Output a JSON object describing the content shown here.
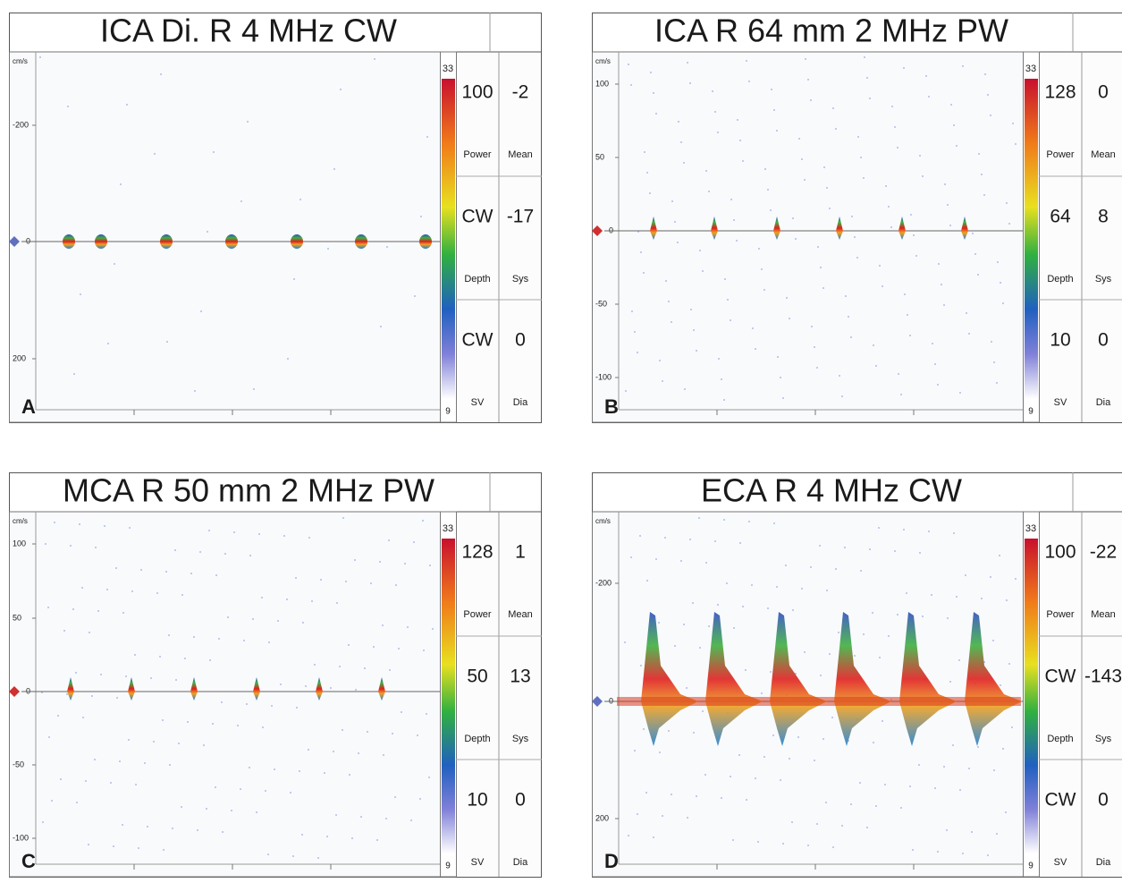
{
  "panels": [
    {
      "letter": "A",
      "title": "ICA Di. R 4 MHz CW",
      "y_unit": "cm/s",
      "y_ticks": [
        "-200",
        "0",
        "200"
      ],
      "scale_top": "33",
      "scale_bottom": "9",
      "readouts": [
        [
          "100",
          "-2"
        ],
        [
          "Power",
          "Mean"
        ],
        [
          "CW",
          "-17"
        ],
        [
          "Depth",
          "Sys"
        ],
        [
          "CW",
          "0"
        ],
        [
          "SV",
          "Dia"
        ]
      ]
    },
    {
      "letter": "B",
      "title": "ICA R 64 mm 2 MHz PW",
      "y_unit": "cm/s",
      "y_ticks": [
        "100",
        "50",
        "0",
        "-50",
        "-100"
      ],
      "scale_top": "33",
      "scale_bottom": "9",
      "readouts": [
        [
          "128",
          "0"
        ],
        [
          "Power",
          "Mean"
        ],
        [
          "64",
          "8"
        ],
        [
          "Depth",
          "Sys"
        ],
        [
          "10",
          "0"
        ],
        [
          "SV",
          "Dia"
        ]
      ]
    },
    {
      "letter": "C",
      "title": "MCA R 50 mm 2 MHz PW",
      "y_unit": "cm/s",
      "y_ticks": [
        "100",
        "50",
        "0",
        "-50",
        "-100"
      ],
      "scale_top": "33",
      "scale_bottom": "9",
      "readouts": [
        [
          "128",
          "1"
        ],
        [
          "Power",
          "Mean"
        ],
        [
          "50",
          "13"
        ],
        [
          "Depth",
          "Sys"
        ],
        [
          "10",
          "0"
        ],
        [
          "SV",
          "Dia"
        ]
      ]
    },
    {
      "letter": "D",
      "title": "ECA R 4 MHz CW",
      "y_unit": "cm/s",
      "y_ticks": [
        "-200",
        "0",
        "200"
      ],
      "scale_top": "33",
      "scale_bottom": "9",
      "readouts": [
        [
          "100",
          "-22"
        ],
        [
          "Power",
          "Mean"
        ],
        [
          "CW",
          "-143"
        ],
        [
          "Depth",
          "Sys"
        ],
        [
          "CW",
          "0"
        ],
        [
          "SV",
          "Dia"
        ]
      ]
    }
  ]
}
